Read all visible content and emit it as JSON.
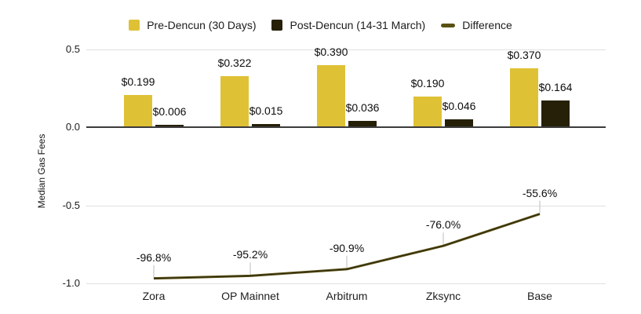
{
  "chart_data": {
    "type": "combo",
    "title": "",
    "categories": [
      "Zora",
      "OP Mainnet",
      "Arbitrum",
      "Zksync",
      "Base"
    ],
    "series": [
      {
        "name": "Pre-Dencun (30 Days)",
        "kind": "bar",
        "color": "#DFC136",
        "values": [
          0.199,
          0.322,
          0.39,
          0.19,
          0.37
        ],
        "labels": [
          "$0.199",
          "$0.322",
          "$0.390",
          "$0.190",
          "$0.370"
        ]
      },
      {
        "name": "Post-Dencun (14-31 March)",
        "kind": "bar",
        "color": "#262009",
        "values": [
          0.006,
          0.015,
          0.036,
          0.046,
          0.164
        ],
        "labels": [
          "$0.006",
          "$0.015",
          "$0.036",
          "$0.046",
          "$0.164"
        ]
      },
      {
        "name": "Difference",
        "kind": "line",
        "color": "#5A5014",
        "values": [
          -0.968,
          -0.952,
          -0.909,
          -0.76,
          -0.556
        ],
        "labels": [
          "-96.8%",
          "-95.2%",
          "-90.9%",
          "-76.0%",
          "-55.6%"
        ]
      }
    ],
    "ylabel": "Median Gas Fees",
    "yticks": [
      {
        "value": 0.5,
        "label": "0.5"
      },
      {
        "value": 0.0,
        "label": "0.0"
      },
      {
        "value": -0.5,
        "label": "-0.5"
      },
      {
        "value": -1.0,
        "label": "-1.0"
      }
    ],
    "ylim": [
      -1.1,
      0.55
    ],
    "grid": true,
    "legend_position": "top",
    "colors": {
      "grid": "#E0E0E0",
      "axis": "#3C3C3C",
      "leader": "#BDBDBD",
      "text": "#111111",
      "background": "#FFFFFF"
    }
  }
}
